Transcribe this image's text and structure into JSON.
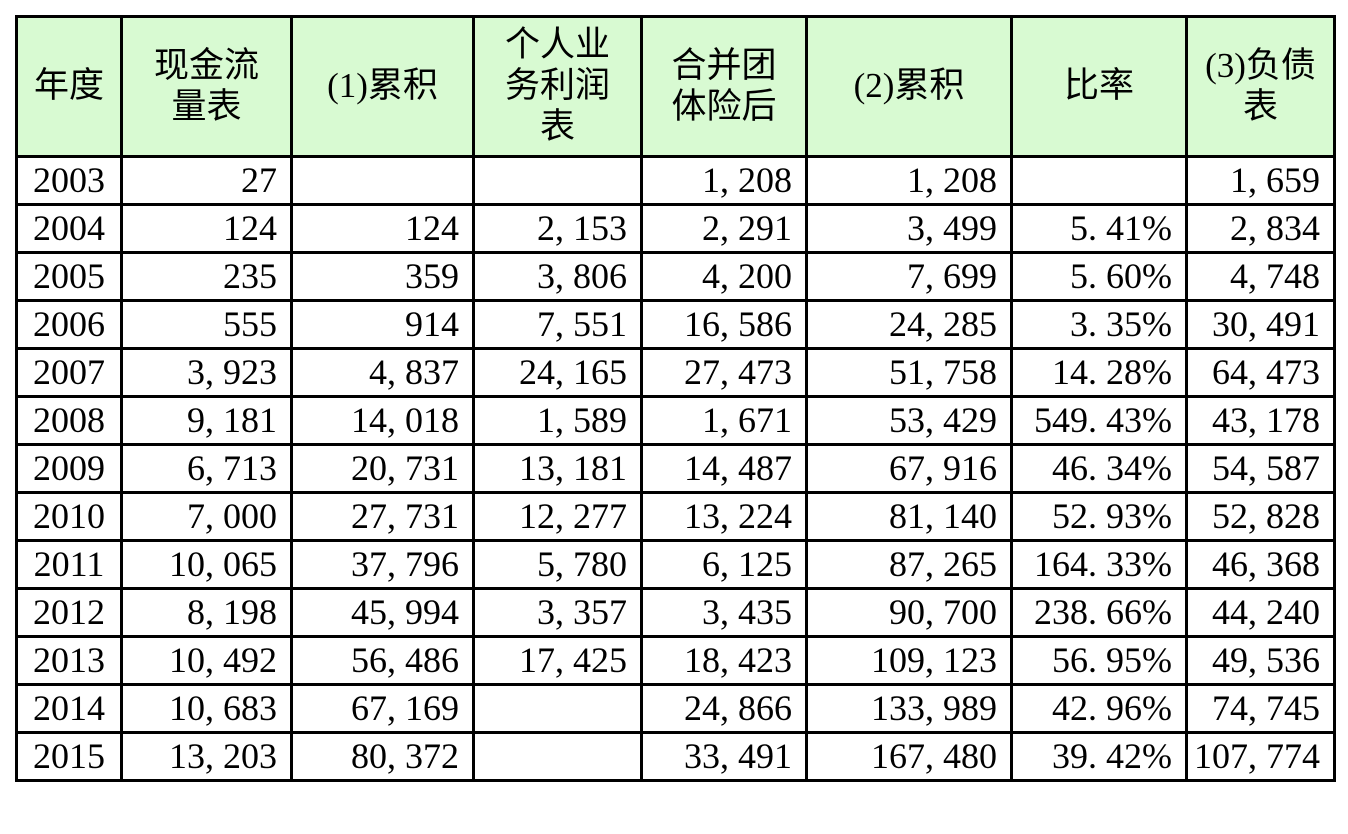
{
  "table": {
    "header_bg": "#d8fad2",
    "border_color": "#000000",
    "columns": [
      {
        "key": "year",
        "label": "年度"
      },
      {
        "key": "cash-flow-statement",
        "label": "现金流\n量表"
      },
      {
        "key": "cumulative-1",
        "label": "(1)累积"
      },
      {
        "key": "personal-business-profit",
        "label": "个人业\n务利润\n表"
      },
      {
        "key": "merged-group-insurance",
        "label": "合并团\n体险后"
      },
      {
        "key": "cumulative-2",
        "label": "(2)累积"
      },
      {
        "key": "ratio",
        "label": "比率"
      },
      {
        "key": "balance-sheet",
        "label": "(3)负债\n表"
      }
    ],
    "rows": [
      [
        "2003",
        "27",
        "",
        "",
        "1, 208",
        "1, 208",
        "",
        "1, 659"
      ],
      [
        "2004",
        "124",
        "124",
        "2, 153",
        "2, 291",
        "3, 499",
        "5. 41%",
        "2, 834"
      ],
      [
        "2005",
        "235",
        "359",
        "3, 806",
        "4, 200",
        "7, 699",
        "5. 60%",
        "4, 748"
      ],
      [
        "2006",
        "555",
        "914",
        "7, 551",
        "16, 586",
        "24, 285",
        "3. 35%",
        "30, 491"
      ],
      [
        "2007",
        "3, 923",
        "4, 837",
        "24, 165",
        "27, 473",
        "51, 758",
        "14. 28%",
        "64, 473"
      ],
      [
        "2008",
        "9, 181",
        "14, 018",
        "1, 589",
        "1, 671",
        "53, 429",
        "549. 43%",
        "43, 178"
      ],
      [
        "2009",
        "6, 713",
        "20, 731",
        "13, 181",
        "14, 487",
        "67, 916",
        "46. 34%",
        "54, 587"
      ],
      [
        "2010",
        "7, 000",
        "27, 731",
        "12, 277",
        "13, 224",
        "81, 140",
        "52. 93%",
        "52, 828"
      ],
      [
        "2011",
        "10, 065",
        "37, 796",
        "5, 780",
        "6, 125",
        "87, 265",
        "164. 33%",
        "46, 368"
      ],
      [
        "2012",
        "8, 198",
        "45, 994",
        "3, 357",
        "3, 435",
        "90, 700",
        "238. 66%",
        "44, 240"
      ],
      [
        "2013",
        "10, 492",
        "56, 486",
        "17, 425",
        "18, 423",
        "109, 123",
        "56. 95%",
        "49, 536"
      ],
      [
        "2014",
        "10, 683",
        "67, 169",
        "",
        "24, 866",
        "133, 989",
        "42. 96%",
        "74, 745"
      ],
      [
        "2015",
        "13, 203",
        "80, 372",
        "",
        "33, 491",
        "167, 480",
        "39. 42%",
        "107, 774"
      ]
    ]
  },
  "chart_data": {
    "type": "table",
    "columns": [
      "年度",
      "现金流量表",
      "(1)累积",
      "个人业务利润表",
      "合并团体险后",
      "(2)累积",
      "比率",
      "(3)负债表"
    ],
    "ratio_unit": "%",
    "rows": [
      [
        2003,
        27,
        null,
        null,
        1208,
        1208,
        null,
        1659
      ],
      [
        2004,
        124,
        124,
        2153,
        2291,
        3499,
        5.41,
        2834
      ],
      [
        2005,
        235,
        359,
        3806,
        4200,
        7699,
        5.6,
        4748
      ],
      [
        2006,
        555,
        914,
        7551,
        16586,
        24285,
        3.35,
        30491
      ],
      [
        2007,
        3923,
        4837,
        24165,
        27473,
        51758,
        14.28,
        64473
      ],
      [
        2008,
        9181,
        14018,
        1589,
        1671,
        53429,
        549.43,
        43178
      ],
      [
        2009,
        6713,
        20731,
        13181,
        14487,
        67916,
        46.34,
        54587
      ],
      [
        2010,
        7000,
        27731,
        12277,
        13224,
        81140,
        52.93,
        52828
      ],
      [
        2011,
        10065,
        37796,
        5780,
        6125,
        87265,
        164.33,
        46368
      ],
      [
        2012,
        8198,
        45994,
        3357,
        3435,
        90700,
        238.66,
        44240
      ],
      [
        2013,
        10492,
        56486,
        17425,
        18423,
        109123,
        56.95,
        49536
      ],
      [
        2014,
        10683,
        67169,
        null,
        24866,
        133989,
        42.96,
        74745
      ],
      [
        2015,
        13203,
        80372,
        null,
        33491,
        167480,
        39.42,
        107774
      ]
    ]
  }
}
